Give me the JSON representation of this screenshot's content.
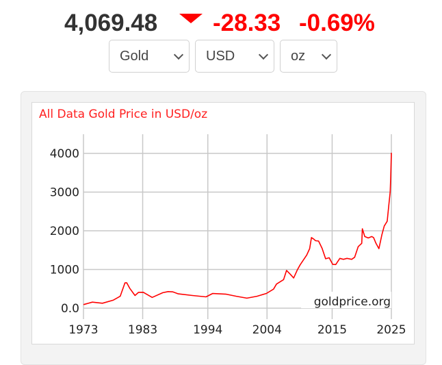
{
  "ticker": {
    "price": "4,069.48",
    "direction_icon": "down-triangle-icon",
    "change": "-28.33",
    "change_pct": "-0.69%",
    "down_color": "#ff0000"
  },
  "selectors": {
    "metal": "Gold",
    "currency": "USD",
    "unit": "oz"
  },
  "chart_data": {
    "type": "line",
    "title": "All Data Gold Price in USD/oz",
    "xlabel": "",
    "ylabel": "",
    "x_ticks": [
      "1973",
      "1983",
      "1994",
      "2004",
      "2015",
      "2025"
    ],
    "y_ticks": [
      "0.0",
      "1000",
      "2000",
      "3000",
      "4000"
    ],
    "xlim": [
      1973,
      2025
    ],
    "ylim": [
      0,
      4400
    ],
    "grid": true,
    "legend": null,
    "watermark": "goldprice.org",
    "series": [
      {
        "name": "Gold Price USD/oz",
        "color": "#ff0000",
        "x": [
          1973.0,
          1974.5,
          1976.2,
          1978.0,
          1979.2,
          1980.0,
          1980.3,
          1980.8,
          1981.7,
          1982.3,
          1983.1,
          1984.6,
          1986.4,
          1987.3,
          1988.1,
          1989.0,
          1991.4,
          1993.7,
          1994.8,
          1997.1,
          1998.8,
          2000.6,
          2002.3,
          2003.9,
          2005.1,
          2005.6,
          2006.8,
          2007.3,
          2007.9,
          2008.5,
          2009.1,
          2009.6,
          2010.7,
          2011.2,
          2011.5,
          2011.9,
          2012.2,
          2012.7,
          2013.3,
          2013.9,
          2014.5,
          2015.1,
          2015.6,
          2016.3,
          2016.9,
          2017.5,
          2018.3,
          2018.8,
          2019.4,
          2020.0,
          2020.1,
          2020.5,
          2021.1,
          2021.7,
          2022.0,
          2022.4,
          2022.9,
          2023.4,
          2023.8,
          2024.3,
          2024.6,
          2024.8,
          2024.9,
          2025.0
        ],
        "values": [
          90,
          160,
          125,
          210,
          300,
          670,
          640,
          530,
          320,
          420,
          400,
          285,
          390,
          440,
          410,
          380,
          320,
          300,
          370,
          370,
          300,
          265,
          300,
          390,
          480,
          640,
          720,
          1000,
          860,
          800,
          960,
          1150,
          1340,
          1580,
          1780,
          1830,
          1700,
          1780,
          1510,
          1310,
          1270,
          1160,
          1100,
          1320,
          1230,
          1320,
          1230,
          1350,
          1550,
          1720,
          2000,
          1900,
          1770,
          1900,
          1780,
          1720,
          1500,
          1950,
          2070,
          2300,
          2650,
          3060,
          3360,
          4069
        ]
      }
    ]
  }
}
